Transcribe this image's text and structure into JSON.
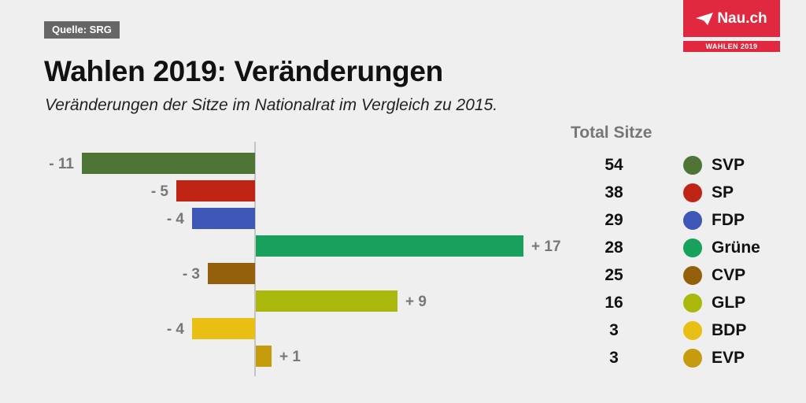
{
  "source": "Quelle: SRG",
  "title": "Wahlen 2019: Veränderungen",
  "subtitle": "Veränderungen der Sitze im Nationalrat im Vergleich zu 2015.",
  "logo": {
    "name": "Nau.ch",
    "tag": "WAHLEN 2019",
    "color": "#e0283e"
  },
  "chart_data": {
    "type": "bar",
    "orientation": "horizontal",
    "title": "Wahlen 2019: Veränderungen",
    "subtitle": "Veränderungen der Sitze im Nationalrat im Vergleich zu 2015.",
    "categories": [
      "SVP",
      "SP",
      "FDP",
      "Grüne",
      "CVP",
      "GLP",
      "BDP",
      "EVP"
    ],
    "values": [
      -11,
      -5,
      -4,
      17,
      -3,
      9,
      -4,
      1
    ],
    "labels": [
      "- 11",
      "- 5",
      "- 4",
      "+ 17",
      "- 3",
      "+ 9",
      "- 4",
      "+ 1"
    ],
    "colors": [
      "#4e7535",
      "#bf2415",
      "#3e57b7",
      "#18a15c",
      "#94600c",
      "#aab80c",
      "#e8bf12",
      "#c59c0b"
    ],
    "xlim": [
      -11,
      17
    ],
    "total_header": "Total Sitze",
    "totals": [
      "54",
      "38",
      "29",
      "28",
      "25",
      "16",
      "3",
      "3"
    ]
  }
}
